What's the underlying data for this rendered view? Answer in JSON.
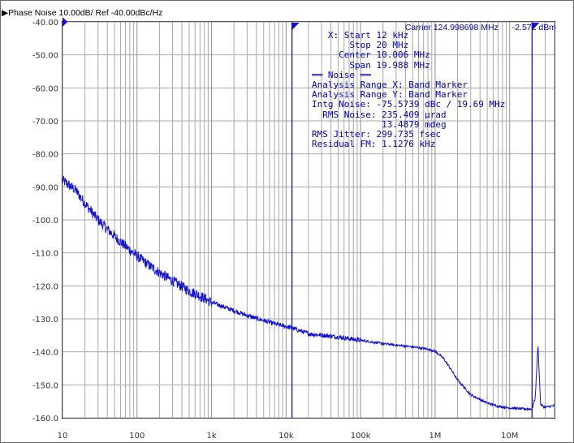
{
  "header": {
    "title": "▶Phase Noise 10.00dB/ Ref -40.00dBc/Hz"
  },
  "carrier": {
    "frequency": "Carrier 124.998698 MHz",
    "power": "-2.572 dBm"
  },
  "annotations": {
    "lines": [
      "   X: Start 12 kHz",
      "       Stop 20 MHz",
      "     Center 10.006 MHz",
      "       Span 19.988 MHz",
      "══ Noise ══",
      "Analysis Range X: Band Marker",
      "Analysis Range Y: Band Marker",
      "Intg Noise: -75.5739 dBc / 19.69 MHz",
      "  RMS Noise: 235.409 µrad",
      "             13.4879 mdeg",
      "RMS Jitter: 299.735 fsec",
      "Residual FM: 1.1276 kHz"
    ]
  },
  "colors": {
    "trace": "#1010d8",
    "marker": "#1010d8",
    "grid": "#a8a8a8",
    "text": "#0000c8"
  },
  "chart_data": {
    "type": "line",
    "xscale": "log",
    "xlim": [
      10,
      40000000
    ],
    "ylim": [
      -160,
      -40
    ],
    "ytick_labels": [
      "-40.00",
      "-50.00",
      "-60.00",
      "-70.00",
      "-80.00",
      "-90.00",
      "-100.0",
      "-110.0",
      "-120.0",
      "-130.0",
      "-140.0",
      "-150.0",
      "-160.0"
    ],
    "yticks": [
      -40,
      -50,
      -60,
      -70,
      -80,
      -90,
      -100,
      -110,
      -120,
      -130,
      -140,
      -150,
      -160
    ],
    "xtick_labels": [
      "10",
      "100",
      "1k",
      "10k",
      "100k",
      "1M",
      "10M"
    ],
    "xticks": [
      10,
      100,
      1000,
      10000,
      100000,
      1000000,
      10000000
    ],
    "markers_x": [
      12000,
      20000000
    ],
    "grid": true,
    "series": [
      {
        "x": [
          10,
          15,
          20,
          30,
          50,
          70,
          100,
          150,
          200,
          300,
          500,
          700,
          1000,
          2000,
          3000,
          5000,
          7000,
          10000,
          12000,
          20000,
          50000,
          100000,
          200000,
          500000,
          800000,
          1000000,
          1300000,
          1600000,
          2000000,
          3000000,
          5000000,
          7000000,
          10000000,
          13000000,
          16000000,
          20000000,
          22000000,
          24000000,
          26000000,
          30000000,
          40000000
        ],
        "y": [
          -88,
          -91,
          -95,
          -100,
          -105,
          -108,
          -111,
          -114,
          -116,
          -118.5,
          -121.5,
          -123,
          -125,
          -127.5,
          -129,
          -130.5,
          -131.5,
          -132.3,
          -132.8,
          -134.5,
          -135.5,
          -136.5,
          -137.5,
          -138.5,
          -139.2,
          -139.8,
          -142,
          -145,
          -148.5,
          -153,
          -155.5,
          -156.5,
          -157,
          -157.2,
          -157.3,
          -157.3,
          -154,
          -138,
          -156,
          -156.8,
          -156.3
        ]
      }
    ]
  }
}
